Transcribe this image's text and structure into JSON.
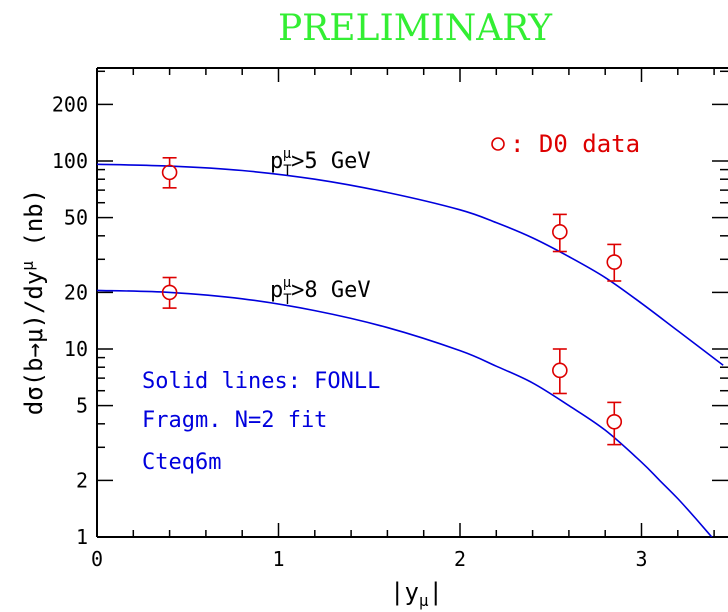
{
  "banner": "PRELIMINARY",
  "chart_data": {
    "type": "line",
    "y_scale": "log",
    "xlim": [
      0,
      3.45
    ],
    "ylim": [
      1,
      300
    ],
    "x_ticks_major": [
      "0",
      "1",
      "2",
      "3"
    ],
    "y_ticks_labeled": [
      "1",
      "2",
      "5",
      "10",
      "20",
      "50",
      "100",
      "200"
    ],
    "xlabel": "|y_μ|",
    "ylabel": "dσ(b→μ)/dy^μ (nb)",
    "curves": [
      {
        "label": "p_T^μ>5 GeV",
        "color": "#0000dd",
        "x": [
          0,
          0.4,
          0.8,
          1.2,
          1.6,
          2.0,
          2.2,
          2.4,
          2.6,
          2.8,
          3.0,
          3.2,
          3.45
        ],
        "y": [
          96,
          94,
          89,
          80,
          68,
          55,
          47,
          39,
          31,
          24,
          17.5,
          12.5,
          8.2
        ]
      },
      {
        "label": "p_T^μ>8 GeV",
        "color": "#0000dd",
        "x": [
          0,
          0.4,
          0.8,
          1.2,
          1.6,
          2.0,
          2.2,
          2.4,
          2.6,
          2.8,
          3.0,
          3.1,
          3.2,
          3.3,
          3.45
        ],
        "y": [
          20.5,
          20,
          18.5,
          16,
          13,
          9.8,
          8.1,
          6.6,
          5.0,
          3.7,
          2.5,
          2.0,
          1.6,
          1.25,
          0.85
        ]
      }
    ],
    "data_points": {
      "label": "D0 data",
      "color": "#dd0000",
      "points": [
        {
          "x": 0.4,
          "y": 87,
          "ylo": 72,
          "yhi": 104
        },
        {
          "x": 2.55,
          "y": 42,
          "ylo": 33,
          "yhi": 52
        },
        {
          "x": 2.85,
          "y": 29,
          "ylo": 23,
          "yhi": 36
        },
        {
          "x": 0.4,
          "y": 20,
          "ylo": 16.5,
          "yhi": 24
        },
        {
          "x": 2.55,
          "y": 7.7,
          "ylo": 5.8,
          "yhi": 10
        },
        {
          "x": 2.85,
          "y": 4.1,
          "ylo": 3.1,
          "yhi": 5.2
        }
      ]
    },
    "legend_text": {
      "data": "D0 data",
      "theory": [
        "Solid lines: FONLL",
        "Fragm. N=2 fit",
        "Cteq6m"
      ]
    }
  }
}
